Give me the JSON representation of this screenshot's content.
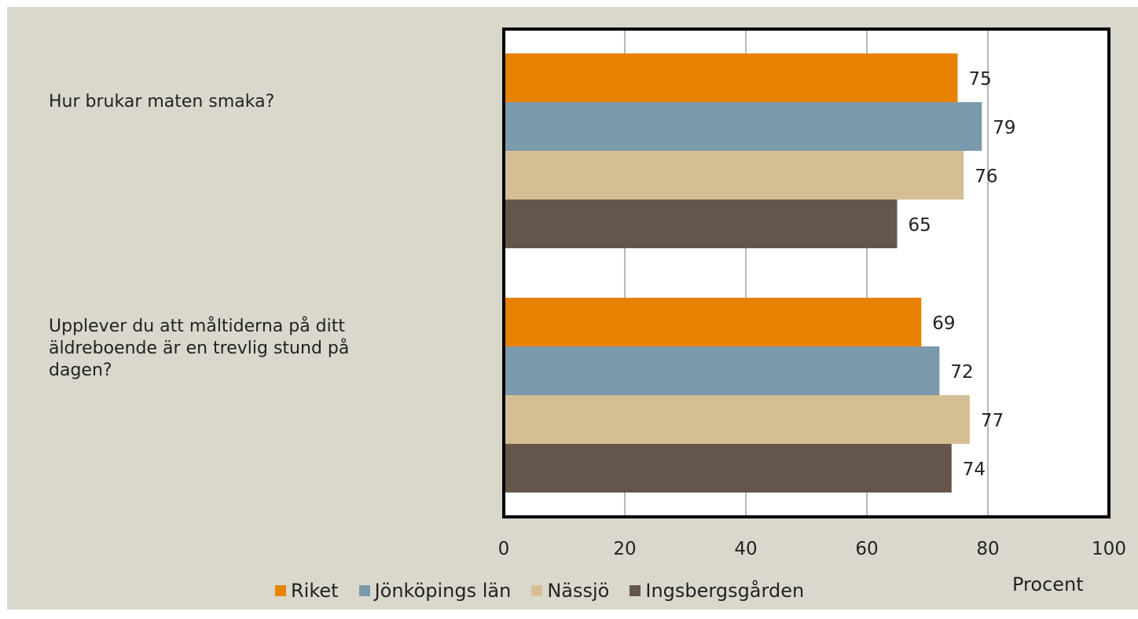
{
  "chart_data": {
    "type": "bar",
    "orientation": "horizontal",
    "categories": [
      "Hur brukar maten smaka?",
      "Upplever du att måltiderna på ditt\näldreboende är en trevlig stund på\ndagen?"
    ],
    "series": [
      {
        "name": "Riket",
        "color": "#e88200",
        "values": [
          75,
          69
        ]
      },
      {
        "name": "Jönköpings län",
        "color": "#7b9aab",
        "values": [
          79,
          72
        ]
      },
      {
        "name": "Nässjö",
        "color": "#d4bf95",
        "values": [
          76,
          77
        ]
      },
      {
        "name": "Ingsbergsgården",
        "color": "#64564a",
        "values": [
          65,
          74
        ]
      }
    ],
    "xlim": [
      0,
      100
    ],
    "xticks": [
      "0",
      "20",
      "40",
      "60",
      "80",
      "100"
    ],
    "xlabel": "Procent",
    "grid": true,
    "legend": "bottom"
  }
}
